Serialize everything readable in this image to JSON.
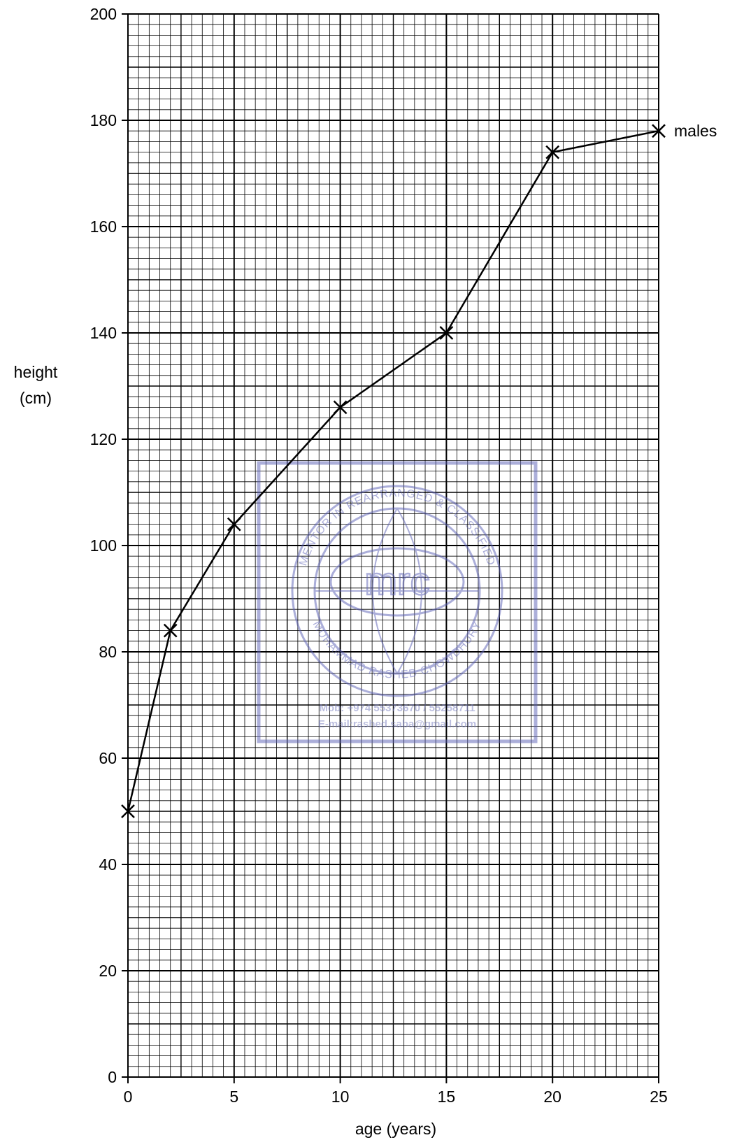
{
  "chart_data": {
    "type": "line",
    "xlabel": "age (years)",
    "ylabel_line1": "height",
    "ylabel_line2": "(cm)",
    "xlim": [
      0,
      25
    ],
    "ylim": [
      0,
      200
    ],
    "x_ticks": [
      0,
      5,
      10,
      15,
      20,
      25
    ],
    "y_ticks": [
      0,
      20,
      40,
      60,
      80,
      100,
      120,
      140,
      160,
      180,
      200
    ],
    "grid": true,
    "series": [
      {
        "name": "males",
        "marker": "x",
        "color": "#000000",
        "x": [
          0,
          2,
          5,
          10,
          15,
          20,
          25
        ],
        "y": [
          50,
          84,
          104,
          126,
          140,
          174,
          178
        ]
      }
    ]
  },
  "watermark": {
    "center": "mrc",
    "ring_top": "MENTOR IN REARRANGED & CLASSIFIED",
    "ring_bottom": "MUHAMMAD RASHED CHOWDHURY",
    "mob": "Mob: +974 55373670 / 55258711",
    "email": "E-mail:rashed.saba@gmail.com",
    "color": "#5a5fb5"
  }
}
